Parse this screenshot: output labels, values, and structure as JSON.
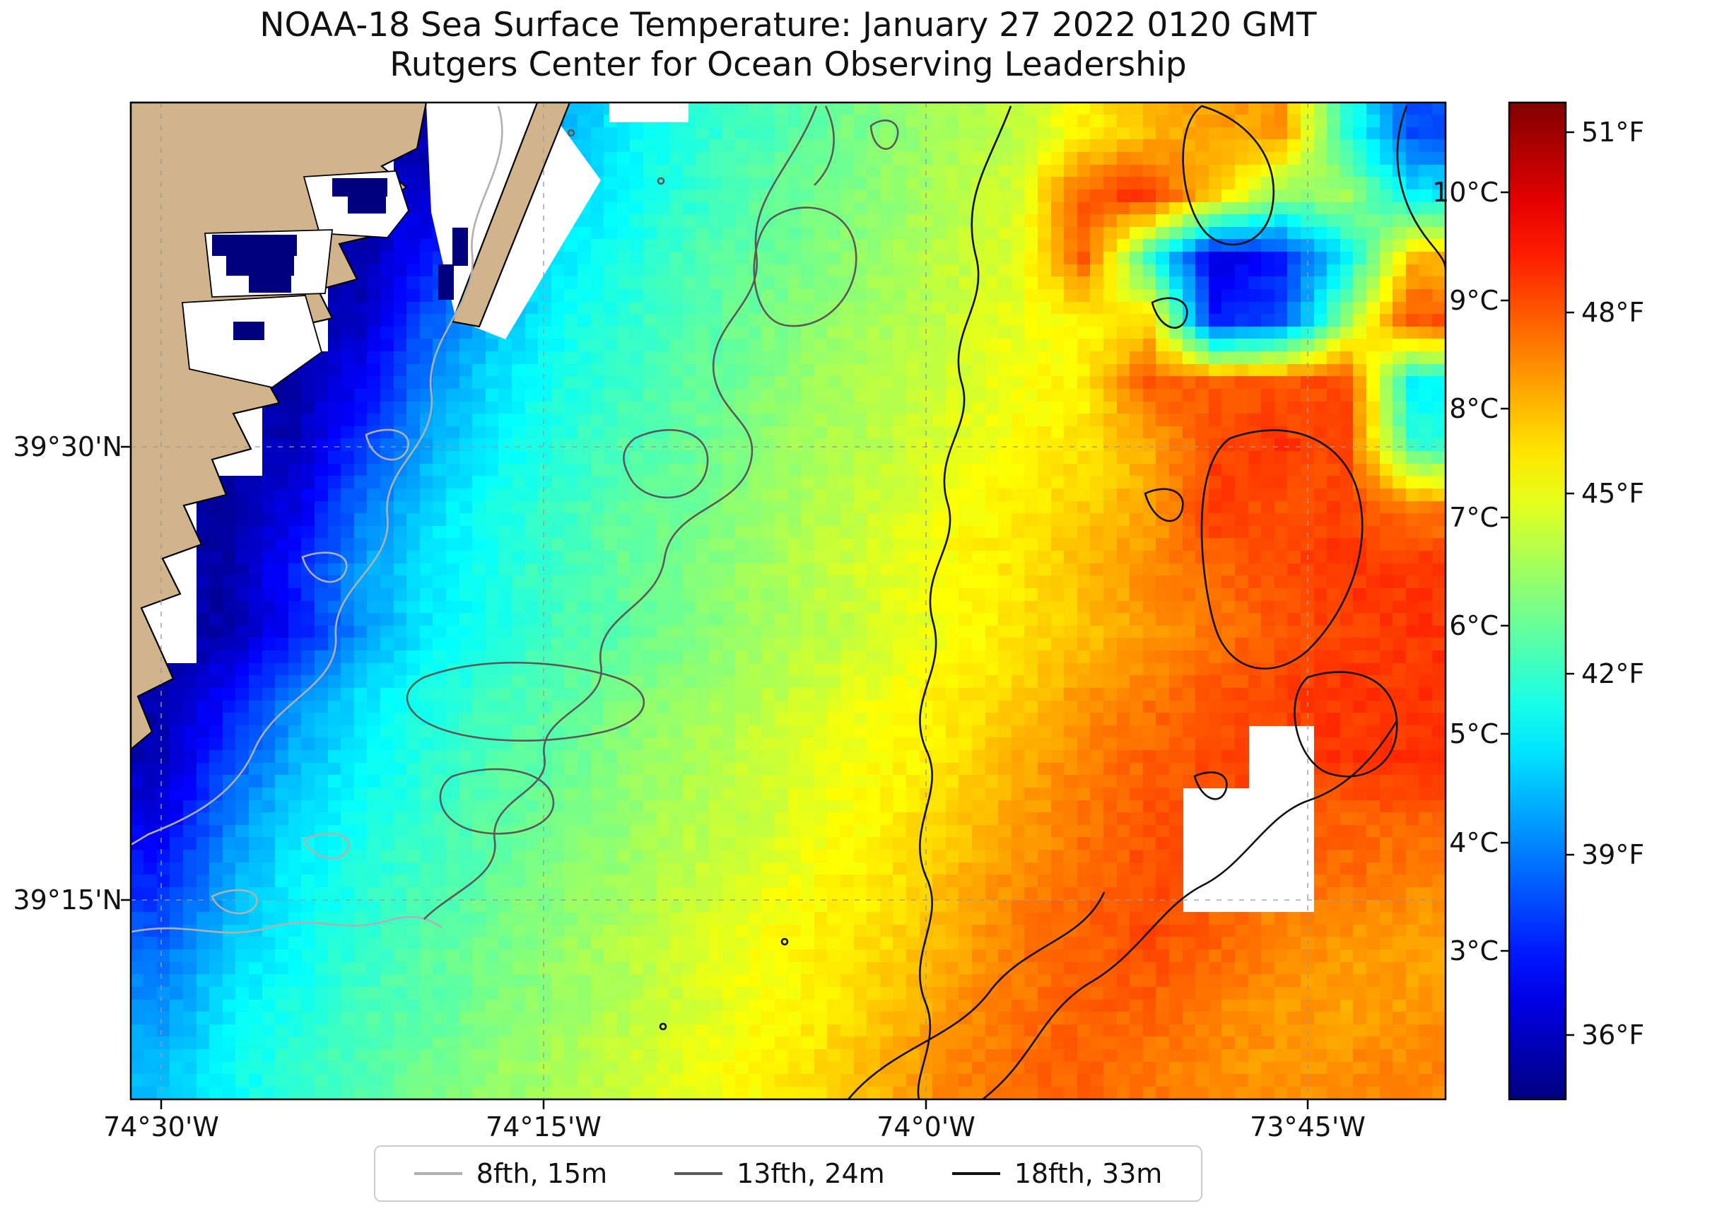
{
  "title": {
    "line1": "NOAA-18 Sea Surface Temperature: January 27 2022 0120 GMT",
    "line2": "Rutgers Center for Ocean Observing Leadership"
  },
  "axes": {
    "x_tick_labels": [
      "74°30'W",
      "74°15'W",
      "74°0'W",
      "73°45'W"
    ],
    "y_tick_labels": [
      "39°30'N",
      "39°15'N"
    ]
  },
  "colorbar": {
    "celsius_labels": [
      "10°C",
      "9°C",
      "8°C",
      "7°C",
      "6°C",
      "5°C",
      "4°C",
      "3°C"
    ],
    "fahrenheit_labels": [
      "51°F",
      "48°F",
      "45°F",
      "42°F",
      "39°F",
      "36°F"
    ],
    "colormap": "jet",
    "min_c": 1.63,
    "max_c": 10.83
  },
  "legend": {
    "items": [
      {
        "label": "8fth, 15m",
        "color": "#b0b0b0"
      },
      {
        "label": "13fth, 24m",
        "color": "#5a5a5a"
      },
      {
        "label": "18fth, 33m",
        "color": "#111111"
      }
    ]
  },
  "map": {
    "land_color": "#d2b48c",
    "no_data_color": "#ffffff",
    "coldest_color": "#00007f"
  },
  "chart_data": {
    "type": "heatmap",
    "title": "NOAA-18 Sea Surface Temperature: January 27 2022 0120 GMT",
    "subtitle": "Rutgers Center for Ocean Observing Leadership",
    "x_axis": {
      "unit": "longitude (degrees west)",
      "range": [
        -74.52,
        -73.66
      ],
      "ticks": [
        {
          "label": "74°30'W",
          "lon": -74.5
        },
        {
          "label": "74°15'W",
          "lon": -74.25
        },
        {
          "label": "74°0'W",
          "lon": -74.0
        },
        {
          "label": "73°45'W",
          "lon": -73.75
        }
      ]
    },
    "y_axis": {
      "unit": "latitude (degrees north)",
      "range": [
        39.14,
        39.69
      ],
      "ticks": [
        {
          "label": "39°30'N",
          "lat": 39.5
        },
        {
          "label": "39°15'N",
          "lat": 39.25
        }
      ]
    },
    "color_scale": {
      "colormap": "jet",
      "min_c": 1.63,
      "max_c": 10.83,
      "celsius_ticks": [
        10,
        9,
        8,
        7,
        6,
        5,
        4,
        3
      ],
      "fahrenheit_ticks": [
        51,
        48,
        45,
        42,
        39,
        36
      ]
    },
    "contours": [
      {
        "label": "8fth, 15m",
        "depth_m": 15,
        "color": "#b0b0b0"
      },
      {
        "label": "13fth, 24m",
        "depth_m": 24,
        "color": "#5a5a5a"
      },
      {
        "label": "18fth, 33m",
        "depth_m": 33,
        "color": "#111111"
      }
    ],
    "sst_grid_c": {
      "cols": 20,
      "rows": 16,
      "note": "Approximate sea-surface temperature (°C) on a coarse grid; row 0 = north edge, col 0 = west edge; null = land or no data (white).",
      "values": [
        [
          null,
          null,
          null,
          null,
          2.0,
          3.1,
          4.3,
          5.0,
          5.4,
          5.7,
          6.0,
          6.3,
          6.6,
          6.8,
          7.5,
          8.0,
          8.2,
          8.3,
          5.5,
          3.5
        ],
        [
          null,
          null,
          null,
          null,
          2.4,
          3.7,
          4.6,
          5.1,
          5.5,
          5.9,
          6.1,
          6.4,
          6.7,
          7.0,
          8.9,
          9.2,
          7.8,
          6.3,
          6.5,
          5.0
        ],
        [
          null,
          null,
          null,
          2.0,
          2.9,
          4.1,
          4.9,
          5.3,
          5.7,
          6.0,
          6.2,
          6.5,
          6.8,
          7.1,
          8.8,
          5.5,
          2.5,
          3.0,
          5.0,
          8.0
        ],
        [
          null,
          null,
          null,
          2.2,
          3.5,
          4.5,
          5.1,
          5.5,
          5.8,
          6.1,
          6.4,
          6.6,
          6.9,
          7.2,
          7.4,
          7.7,
          3.0,
          3.5,
          6.5,
          9.0
        ],
        [
          null,
          null,
          2.0,
          2.7,
          3.9,
          4.8,
          5.3,
          5.6,
          5.9,
          6.2,
          6.5,
          6.7,
          7.0,
          7.3,
          7.5,
          8.9,
          8.8,
          8.9,
          9.0,
          5.0
        ],
        [
          null,
          null,
          2.1,
          3.3,
          4.3,
          5.0,
          5.4,
          5.8,
          6.0,
          6.3,
          6.6,
          6.8,
          7.1,
          7.4,
          7.6,
          8.1,
          9.1,
          9.2,
          9.0,
          5.5
        ],
        [
          null,
          2.0,
          2.5,
          3.8,
          4.7,
          5.2,
          5.6,
          5.9,
          6.1,
          6.4,
          6.7,
          7.0,
          7.3,
          7.5,
          7.8,
          8.2,
          9.2,
          8.9,
          9.1,
          8.5
        ],
        [
          null,
          2.0,
          3.0,
          4.2,
          4.9,
          5.3,
          5.7,
          6.0,
          6.2,
          6.5,
          6.8,
          7.1,
          7.4,
          7.6,
          8.0,
          8.4,
          8.7,
          9.0,
          9.2,
          9.2
        ],
        [
          null,
          2.0,
          2.9,
          4.1,
          4.9,
          5.3,
          5.7,
          5.9,
          6.2,
          6.5,
          6.7,
          7.0,
          7.3,
          7.6,
          7.9,
          8.3,
          8.6,
          8.9,
          9.1,
          9.2
        ],
        [
          2.0,
          2.8,
          4.0,
          4.8,
          5.3,
          5.6,
          5.9,
          6.2,
          6.4,
          6.7,
          7.0,
          7.3,
          7.5,
          7.8,
          8.3,
          8.6,
          8.9,
          9.1,
          9.2,
          9.2
        ],
        [
          2.1,
          3.4,
          4.4,
          5.0,
          5.4,
          5.8,
          6.0,
          6.3,
          6.6,
          6.9,
          7.2,
          7.4,
          7.6,
          8.1,
          8.5,
          8.8,
          9.0,
          null,
          9.2,
          9.2
        ],
        [
          2.6,
          3.9,
          4.8,
          5.2,
          5.6,
          5.9,
          6.1,
          6.4,
          6.7,
          6.9,
          7.2,
          7.5,
          7.8,
          8.2,
          8.6,
          8.9,
          null,
          null,
          8.8,
          8.8
        ],
        [
          3.1,
          4.3,
          5.0,
          5.4,
          5.7,
          6.0,
          6.3,
          6.5,
          6.8,
          7.1,
          7.4,
          7.6,
          8.0,
          8.4,
          8.7,
          9.0,
          null,
          null,
          8.7,
          8.5
        ],
        [
          3.7,
          4.6,
          5.1,
          5.5,
          5.9,
          6.1,
          6.4,
          6.7,
          7.0,
          7.3,
          7.5,
          7.7,
          8.1,
          8.6,
          8.8,
          9.0,
          8.8,
          8.5,
          8.3,
          8.2
        ],
        [
          4.1,
          4.9,
          5.3,
          5.7,
          5.9,
          6.2,
          6.5,
          6.7,
          7.0,
          7.3,
          7.5,
          7.9,
          8.3,
          8.6,
          8.8,
          8.8,
          8.5,
          8.3,
          8.2,
          8.3
        ],
        [
          4.5,
          5.1,
          5.5,
          5.8,
          6.1,
          6.4,
          6.6,
          6.9,
          7.2,
          7.4,
          7.7,
          8.1,
          8.5,
          8.7,
          8.8,
          8.6,
          8.4,
          8.3,
          8.4,
          8.5
        ]
      ]
    }
  }
}
